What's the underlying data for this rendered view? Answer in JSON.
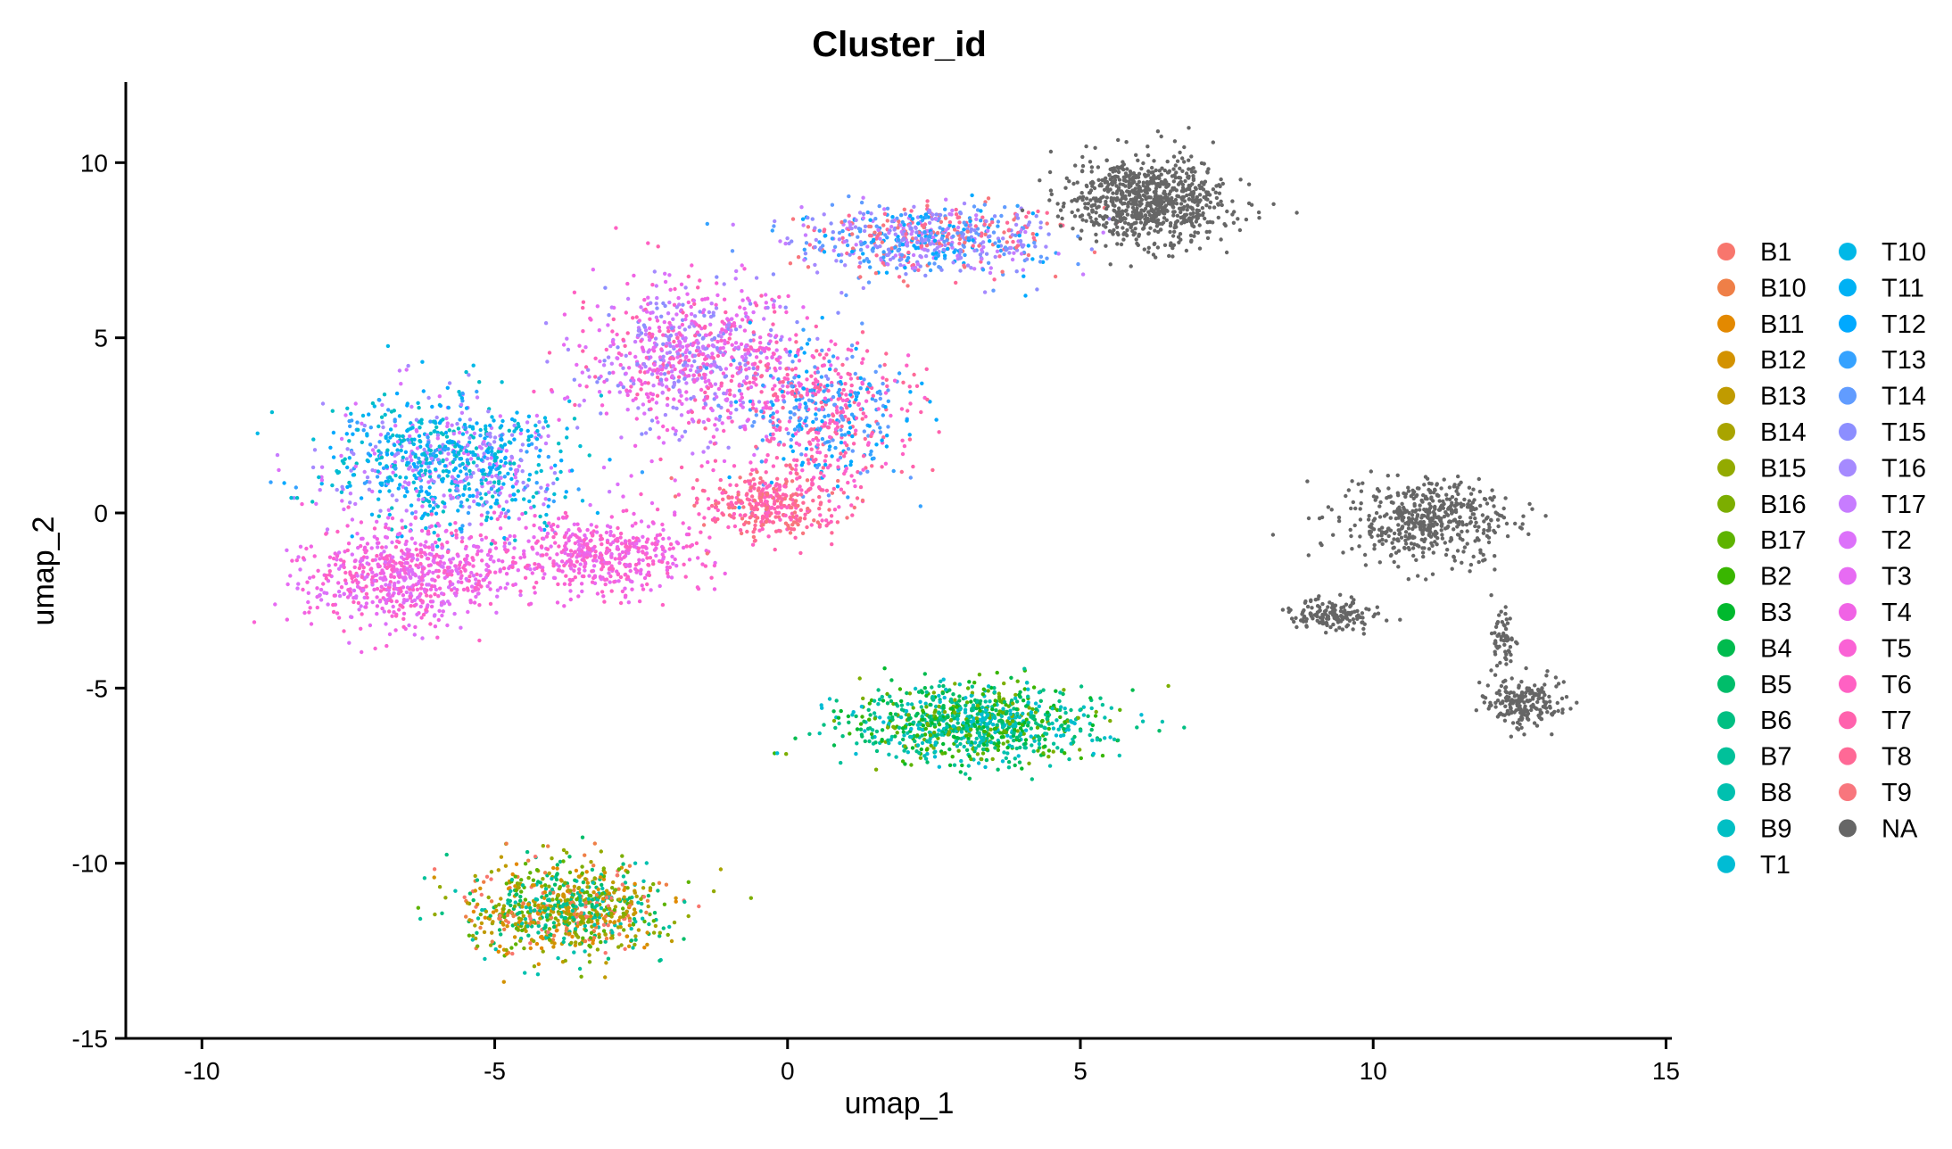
{
  "chart_data": {
    "type": "scatter",
    "title": "Cluster_id",
    "xlabel": "umap_1",
    "ylabel": "umap_2",
    "xlim": [
      -11.3,
      15.1
    ],
    "ylim": [
      -15.0,
      12.3
    ],
    "xticks": [
      -10,
      -5,
      0,
      5,
      10,
      15
    ],
    "xtick_labels": [
      "-10",
      "-5",
      "0",
      "5",
      "10",
      "15"
    ],
    "yticks": [
      -15,
      -10,
      -5,
      0,
      5,
      10
    ],
    "ytick_labels": [
      "-15",
      "-10",
      "-5",
      "0",
      "5",
      "10"
    ],
    "grid": false,
    "legend_position": "right",
    "legend_columns": 2,
    "series": [
      {
        "name": "B1",
        "color": "#F8766D"
      },
      {
        "name": "B10",
        "color": "#EF7F47"
      },
      {
        "name": "B11",
        "color": "#E38900"
      },
      {
        "name": "B12",
        "color": "#D39200"
      },
      {
        "name": "B13",
        "color": "#C09B00"
      },
      {
        "name": "B14",
        "color": "#A9A400"
      },
      {
        "name": "B15",
        "color": "#93AA00"
      },
      {
        "name": "B16",
        "color": "#7CAE00"
      },
      {
        "name": "B17",
        "color": "#5EB300"
      },
      {
        "name": "B2",
        "color": "#39B600"
      },
      {
        "name": "B3",
        "color": "#00B92E"
      },
      {
        "name": "B4",
        "color": "#00BB4E"
      },
      {
        "name": "B5",
        "color": "#00BD6A"
      },
      {
        "name": "B6",
        "color": "#00BF82"
      },
      {
        "name": "B7",
        "color": "#00C19A"
      },
      {
        "name": "B8",
        "color": "#00C0AF"
      },
      {
        "name": "B9",
        "color": "#00BFC4"
      },
      {
        "name": "T1",
        "color": "#00BCD4"
      },
      {
        "name": "T10",
        "color": "#00B8E7"
      },
      {
        "name": "T11",
        "color": "#00B1F4"
      },
      {
        "name": "T12",
        "color": "#00A9FF"
      },
      {
        "name": "T13",
        "color": "#35A2FF"
      },
      {
        "name": "T14",
        "color": "#619CFF"
      },
      {
        "name": "T15",
        "color": "#8C8EFF"
      },
      {
        "name": "T16",
        "color": "#A58AFF"
      },
      {
        "name": "T17",
        "color": "#C77CFF"
      },
      {
        "name": "T2",
        "color": "#DC71FA"
      },
      {
        "name": "T3",
        "color": "#E76BF3"
      },
      {
        "name": "T4",
        "color": "#F063E5"
      },
      {
        "name": "T5",
        "color": "#FA62D5"
      },
      {
        "name": "T6",
        "color": "#FF61C3"
      },
      {
        "name": "T7",
        "color": "#FF62AD"
      },
      {
        "name": "T8",
        "color": "#FF6996"
      },
      {
        "name": "T9",
        "color": "#F8767D"
      },
      {
        "name": "NA",
        "color": "#666666"
      }
    ],
    "clusters": [
      {
        "center": [
          -5.8,
          1.5
        ],
        "spread": [
          1.9,
          1.7
        ],
        "count": 900,
        "series": [
          "T10",
          "T11",
          "T12",
          "T13",
          "B9",
          "T1",
          "T16",
          "T17",
          "T2"
        ]
      },
      {
        "center": [
          -6.5,
          -1.8
        ],
        "spread": [
          1.6,
          1.3
        ],
        "count": 700,
        "series": [
          "T4",
          "T5",
          "T6",
          "T3",
          "T2"
        ]
      },
      {
        "center": [
          -3.2,
          -1.2
        ],
        "spread": [
          1.7,
          1.0
        ],
        "count": 500,
        "series": [
          "T5",
          "T6",
          "T4",
          "T3"
        ]
      },
      {
        "center": [
          -1.6,
          4.4
        ],
        "spread": [
          1.6,
          2.0
        ],
        "count": 850,
        "series": [
          "T3",
          "T4",
          "T5",
          "T6",
          "T7",
          "T15",
          "T16",
          "T17",
          "T2"
        ]
      },
      {
        "center": [
          0.6,
          2.8
        ],
        "spread": [
          1.3,
          1.9
        ],
        "count": 600,
        "series": [
          "T12",
          "T13",
          "T14",
          "T5",
          "T6",
          "T7",
          "T8"
        ]
      },
      {
        "center": [
          -0.3,
          0.3
        ],
        "spread": [
          1.1,
          0.9
        ],
        "count": 350,
        "series": [
          "T7",
          "T8",
          "T9",
          "T6"
        ]
      },
      {
        "center": [
          2.4,
          7.8
        ],
        "spread": [
          2.0,
          0.9
        ],
        "count": 700,
        "series": [
          "T12",
          "T13",
          "T14",
          "T15",
          "T16",
          "T17",
          "T8",
          "T9"
        ]
      },
      {
        "center": [
          6.2,
          8.9
        ],
        "spread": [
          1.2,
          1.1
        ],
        "count": 800,
        "series": [
          "NA"
        ]
      },
      {
        "center": [
          3.2,
          -6.0
        ],
        "spread": [
          1.9,
          1.0
        ],
        "count": 950,
        "series": [
          "B2",
          "B3",
          "B4",
          "B5",
          "B6",
          "B7",
          "B8",
          "B9",
          "T1",
          "B17",
          "B16"
        ]
      },
      {
        "center": [
          -3.8,
          -11.3
        ],
        "spread": [
          1.5,
          1.2
        ],
        "count": 850,
        "series": [
          "B1",
          "B10",
          "B11",
          "B12",
          "B13",
          "B14",
          "B15",
          "B16",
          "B17",
          "B5",
          "B6",
          "B7",
          "B8"
        ]
      },
      {
        "center": [
          10.9,
          -0.2
        ],
        "spread": [
          1.3,
          1.0
        ],
        "count": 500,
        "series": [
          "NA"
        ]
      },
      {
        "center": [
          9.3,
          -2.9
        ],
        "spread": [
          0.7,
          0.4
        ],
        "count": 150,
        "series": [
          "NA"
        ]
      },
      {
        "center": [
          12.6,
          -5.4
        ],
        "spread": [
          0.6,
          0.6
        ],
        "count": 200,
        "series": [
          "NA"
        ]
      },
      {
        "center": [
          12.2,
          -3.6
        ],
        "spread": [
          0.2,
          0.8
        ],
        "count": 60,
        "series": [
          "NA"
        ]
      }
    ]
  }
}
